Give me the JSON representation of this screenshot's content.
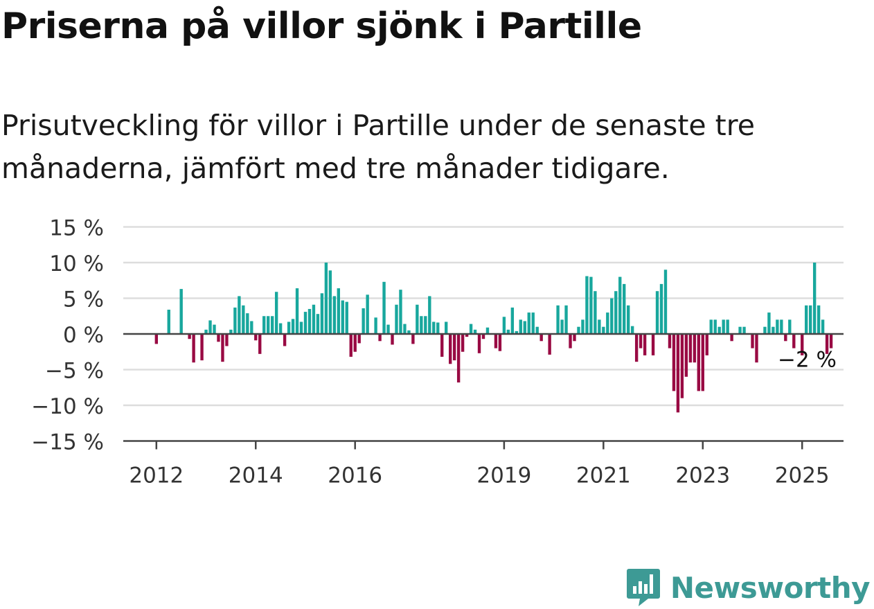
{
  "header": {
    "title": "Priserna på villor sjönk i Partille",
    "subtitle": "Prisutveckling för villor i Partille under de senaste tre månaderna, jämfört med tre månader tidigare."
  },
  "brand": {
    "name": "Newsworthy",
    "icon": "newsworthy-logo-icon",
    "color": "#3d9a95"
  },
  "colors": {
    "positive": "#18a79d",
    "negative": "#990a43",
    "grid": "#dddddd",
    "axis": "#444444"
  },
  "chart_data": {
    "type": "bar",
    "title": "Priserna på villor sjönk i Partille",
    "subtitle": "Prisutveckling för villor i Partille under de senaste tre månaderna, jämfört med tre månader tidigare.",
    "unit": "%",
    "ylim": [
      -15,
      15
    ],
    "yticks": [
      15,
      10,
      5,
      0,
      -5,
      -10,
      -15
    ],
    "ytick_labels": [
      "15 %",
      "10 %",
      "5 %",
      "0 %",
      "−5 %",
      "−10 %",
      "−15 %"
    ],
    "xlim": [
      "2011-05",
      "2025-11"
    ],
    "xticks": [
      "2012-01",
      "2014-01",
      "2016-01",
      "2019-01",
      "2021-01",
      "2023-01",
      "2025-01"
    ],
    "xtick_labels": [
      "2012",
      "2014",
      "2016",
      "2019",
      "2021",
      "2023",
      "2025"
    ],
    "grid": true,
    "annotation": {
      "x": "2025-05",
      "text": "−2 %"
    },
    "start": "2012-01",
    "values": [
      -1.4,
      0,
      0,
      3.4,
      0,
      0,
      6.3,
      0,
      -0.7,
      -4,
      0,
      -3.7,
      0.6,
      1.9,
      1.3,
      -1.1,
      -3.9,
      -1.7,
      0.6,
      3.7,
      5.3,
      4,
      2.9,
      1.8,
      -0.9,
      -2.8,
      2.5,
      2.5,
      2.5,
      5.9,
      1.5,
      -1.7,
      1.7,
      2.1,
      6.4,
      1.7,
      3.1,
      3.5,
      4.1,
      2.8,
      5.7,
      10,
      8.9,
      5.3,
      6.4,
      4.7,
      4.5,
      -3.2,
      -2.5,
      -1.3,
      3.6,
      5.5,
      0,
      2.3,
      -1,
      7.3,
      1.3,
      -1.5,
      4.1,
      6.2,
      1.4,
      0.5,
      -1.4,
      4.1,
      2.5,
      2.5,
      5.3,
      1.7,
      1.6,
      -3.2,
      1.7,
      -4.2,
      -3.7,
      -6.8,
      -2.5,
      -0.4,
      1.4,
      0.6,
      -2.7,
      -0.7,
      0.9,
      0,
      -2,
      -2.4,
      2.4,
      0.6,
      3.7,
      0.4,
      2,
      1.8,
      3,
      3,
      1,
      -1,
      0,
      -2.9,
      0,
      4,
      2,
      4,
      -2,
      -1,
      1,
      2,
      8.1,
      8,
      6,
      2,
      1,
      3,
      5,
      6,
      8,
      7,
      4,
      1.1,
      -3.9,
      -2,
      -3,
      0,
      -3,
      6,
      7,
      9,
      -2,
      -8,
      -11,
      -9,
      -6,
      -4,
      -4,
      -8,
      -8,
      -3,
      2,
      2,
      1,
      2,
      2,
      -1,
      0,
      1,
      1,
      0,
      -2,
      -4,
      0,
      1,
      3,
      1,
      2,
      2,
      -1,
      2,
      -2,
      0,
      -3,
      4,
      4,
      10,
      4,
      2,
      -2.8,
      -2
    ]
  }
}
